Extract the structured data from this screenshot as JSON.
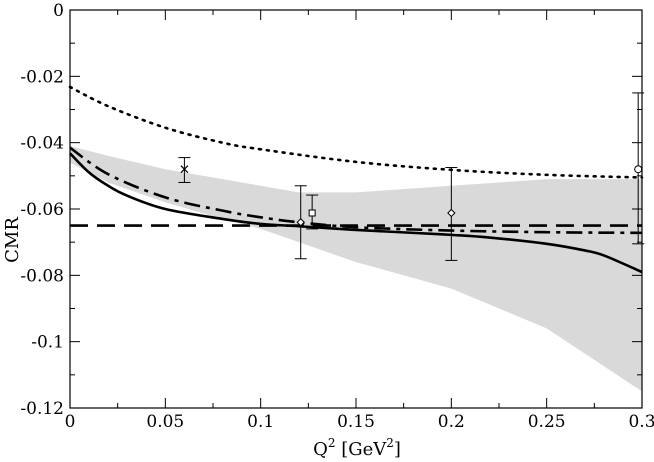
{
  "chart_data": {
    "type": "line",
    "title": "",
    "ylabel": "CMR",
    "xlabel": {
      "base": "Q",
      "base_sup": "2",
      "unit_open": " [GeV",
      "unit_sup": "2",
      "unit_close": "]"
    },
    "xlim": [
      0,
      0.3
    ],
    "ylim": [
      -0.12,
      0
    ],
    "xticks": [
      0,
      0.05,
      0.1,
      0.15,
      0.2,
      0.25,
      0.3
    ],
    "xtick_labels": [
      "0",
      "0.05",
      "0.1",
      "0.15",
      "0.2",
      "0.25",
      "0.3"
    ],
    "yticks": [
      -0.12,
      -0.1,
      -0.08,
      -0.06,
      -0.04,
      -0.02,
      0
    ],
    "ytick_labels": [
      "-0.12",
      "-0.1",
      "-0.08",
      "-0.06",
      "-0.04",
      "-0.02",
      "0"
    ],
    "grid": false,
    "band": {
      "name": "uncertainty band",
      "color": "#d9d9d9",
      "x": [
        0,
        0.02,
        0.05,
        0.08,
        0.1,
        0.12,
        0.15,
        0.2,
        0.25,
        0.3
      ],
      "upper": [
        -0.041,
        -0.044,
        -0.048,
        -0.051,
        -0.053,
        -0.055,
        -0.055,
        -0.053,
        -0.051,
        -0.051
      ],
      "lower": [
        -0.046,
        -0.052,
        -0.058,
        -0.063,
        -0.066,
        -0.07,
        -0.076,
        -0.084,
        -0.096,
        -0.115
      ]
    },
    "series": [
      {
        "name": "solid",
        "style": "solid",
        "color": "#000000",
        "x": [
          0,
          0.01,
          0.02,
          0.03,
          0.05,
          0.08,
          0.1,
          0.12,
          0.15,
          0.18,
          0.2,
          0.22,
          0.25,
          0.27,
          0.28,
          0.3
        ],
        "y": [
          -0.0432,
          -0.049,
          -0.053,
          -0.056,
          -0.06,
          -0.063,
          -0.0645,
          -0.0652,
          -0.0663,
          -0.0672,
          -0.0678,
          -0.0686,
          -0.0705,
          -0.0725,
          -0.074,
          -0.079
        ]
      },
      {
        "name": "dash-dot",
        "style": "dashdot",
        "color": "#000000",
        "x": [
          0,
          0.02,
          0.05,
          0.08,
          0.1,
          0.12,
          0.15,
          0.2,
          0.25,
          0.3
        ],
        "y": [
          -0.0415,
          -0.0495,
          -0.0565,
          -0.0605,
          -0.0625,
          -0.064,
          -0.0655,
          -0.0665,
          -0.067,
          -0.0672
        ]
      },
      {
        "name": "dashed",
        "style": "dashed",
        "color": "#000000",
        "x": [
          0,
          0.3
        ],
        "y": [
          -0.065,
          -0.065
        ]
      },
      {
        "name": "dotted",
        "style": "dotted",
        "color": "#000000",
        "x": [
          0,
          0.02,
          0.05,
          0.08,
          0.1,
          0.15,
          0.2,
          0.25,
          0.3
        ],
        "y": [
          -0.0232,
          -0.029,
          -0.0355,
          -0.04,
          -0.042,
          -0.0458,
          -0.0482,
          -0.0497,
          -0.0505
        ]
      }
    ],
    "data_points": [
      {
        "name": "cross",
        "marker": "x",
        "x": 0.06,
        "y": -0.048,
        "yerr_low": -0.052,
        "yerr_high": -0.0445
      },
      {
        "name": "diamond",
        "marker": "diamond",
        "x": 0.121,
        "y": -0.064,
        "yerr_low": -0.075,
        "yerr_high": -0.053
      },
      {
        "name": "square",
        "marker": "square",
        "x": 0.127,
        "y": -0.0612,
        "yerr_low": -0.066,
        "yerr_high": -0.0558
      },
      {
        "name": "diamond",
        "marker": "diamond",
        "x": 0.2,
        "y": -0.0612,
        "yerr_low": -0.0755,
        "yerr_high": -0.0475
      },
      {
        "name": "circle",
        "marker": "circle",
        "x": 0.298,
        "y": -0.048,
        "yerr_low": -0.0705,
        "yerr_high": -0.025
      }
    ]
  }
}
